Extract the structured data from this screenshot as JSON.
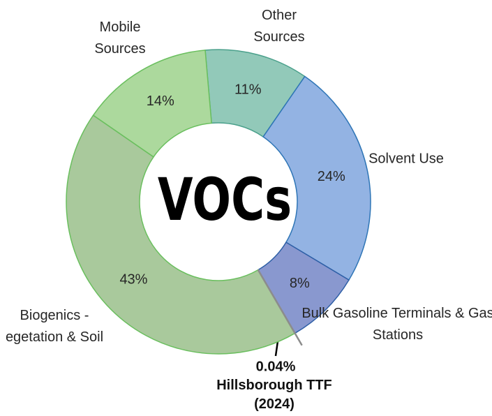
{
  "chart_data": {
    "type": "pie",
    "donut": true,
    "center_label": "VOCs",
    "categories": [
      "Other Sources",
      "Solvent Use",
      "Bulk Gasoline Terminals & Gas Stations",
      "Hillsborough TTF (2024)",
      "Biogenics - egetation & Soil",
      "Mobile Sources"
    ],
    "values": [
      11,
      24,
      8,
      0.04,
      43,
      14
    ],
    "value_labels": [
      "11%",
      "24%",
      "8%",
      "0.04%",
      "43%",
      "14%"
    ],
    "colors": [
      "#92c9b9",
      "#93b3e3",
      "#8998cf",
      "#a6a6a6",
      "#a9c99c",
      "#acd99d"
    ],
    "edge_colors": [
      "#4aa08b",
      "#2e75b6",
      "#2e5fa6",
      "#8c8c8c",
      "#6abf5e",
      "#6abf5e"
    ]
  }
}
